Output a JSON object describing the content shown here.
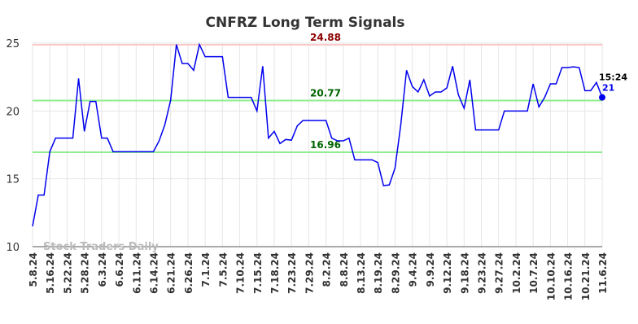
{
  "chart_data": {
    "type": "line",
    "title": "CNFRZ Long Term Signals",
    "watermark": "Stock Traders Daily",
    "last_time": "15:24",
    "categories": [
      "5.8.24",
      null,
      null,
      "5.16.24",
      null,
      null,
      "5.22.24",
      null,
      null,
      "5.28.24",
      null,
      null,
      "6.3.24",
      null,
      null,
      "6.6.24",
      null,
      null,
      "6.11.24",
      null,
      null,
      "6.14.24",
      null,
      null,
      "6.21.24",
      null,
      null,
      "6.26.24",
      null,
      null,
      "7.1.24",
      null,
      null,
      "7.5.24",
      null,
      null,
      "7.10.24",
      null,
      null,
      "7.15.24",
      null,
      null,
      "7.18.24",
      null,
      null,
      "7.23.24",
      null,
      null,
      "7.29.24",
      null,
      null,
      "8.2.24",
      null,
      null,
      "8.8.24",
      null,
      null,
      "8.13.24",
      null,
      null,
      "8.19.24",
      null,
      null,
      "8.29.24",
      null,
      null,
      "9.4.24",
      null,
      null,
      "9.9.24",
      null,
      null,
      "9.12.24",
      null,
      null,
      "9.18.24",
      null,
      null,
      "9.23.24",
      null,
      null,
      "9.27.24",
      null,
      null,
      "10.2.24",
      null,
      null,
      "10.7.24",
      null,
      null,
      "10.10.24",
      null,
      null,
      "10.16.24",
      null,
      null,
      "10.21.24",
      null,
      null,
      "11.6.24"
    ],
    "series": [
      {
        "color": "#0000ee",
        "values": [
          11.5,
          13.8,
          13.8,
          17.0,
          18.0,
          18.0,
          18.0,
          18.0,
          22.4,
          18.5,
          20.7,
          20.7,
          18.0,
          18.0,
          17.0,
          17.0,
          17.0,
          17.0,
          17.0,
          17.0,
          17.0,
          17.0,
          17.8,
          19.0,
          20.8,
          24.9,
          23.5,
          23.5,
          23.0,
          24.9,
          24.0,
          24.0,
          24.0,
          24.0,
          21.0,
          21.0,
          21.0,
          21.0,
          21.0,
          20.0,
          23.3,
          18.0,
          18.5,
          17.6,
          17.9,
          17.85,
          18.9,
          19.3,
          19.3,
          19.3,
          19.3,
          19.3,
          18.0,
          17.8,
          17.8,
          18.0,
          16.4,
          16.4,
          16.4,
          16.4,
          16.2,
          14.5,
          14.55,
          15.8,
          19.0,
          23.0,
          21.8,
          21.4,
          22.3,
          21.1,
          21.4,
          21.4,
          21.7,
          23.3,
          21.2,
          20.2,
          22.3,
          18.6,
          18.6,
          18.6,
          18.6,
          18.6,
          20.0,
          20.0,
          20.0,
          20.0,
          20.0,
          22.0,
          20.3,
          21.0,
          22.0,
          22.0,
          23.2,
          23.2,
          23.25,
          23.2,
          21.5,
          21.5,
          22.1,
          21
        ]
      }
    ],
    "hlines": [
      {
        "value": 24.88,
        "color": "#ffc8c8",
        "label_color": "#8b0000"
      },
      {
        "value": 20.77,
        "color": "#90ee90",
        "label_color": "#006400"
      },
      {
        "value": 16.96,
        "color": "#90ee90",
        "label_color": "#006400"
      }
    ],
    "ylim": [
      10,
      25
    ],
    "yticks": [
      10,
      15,
      20,
      25
    ],
    "grid": true
  }
}
